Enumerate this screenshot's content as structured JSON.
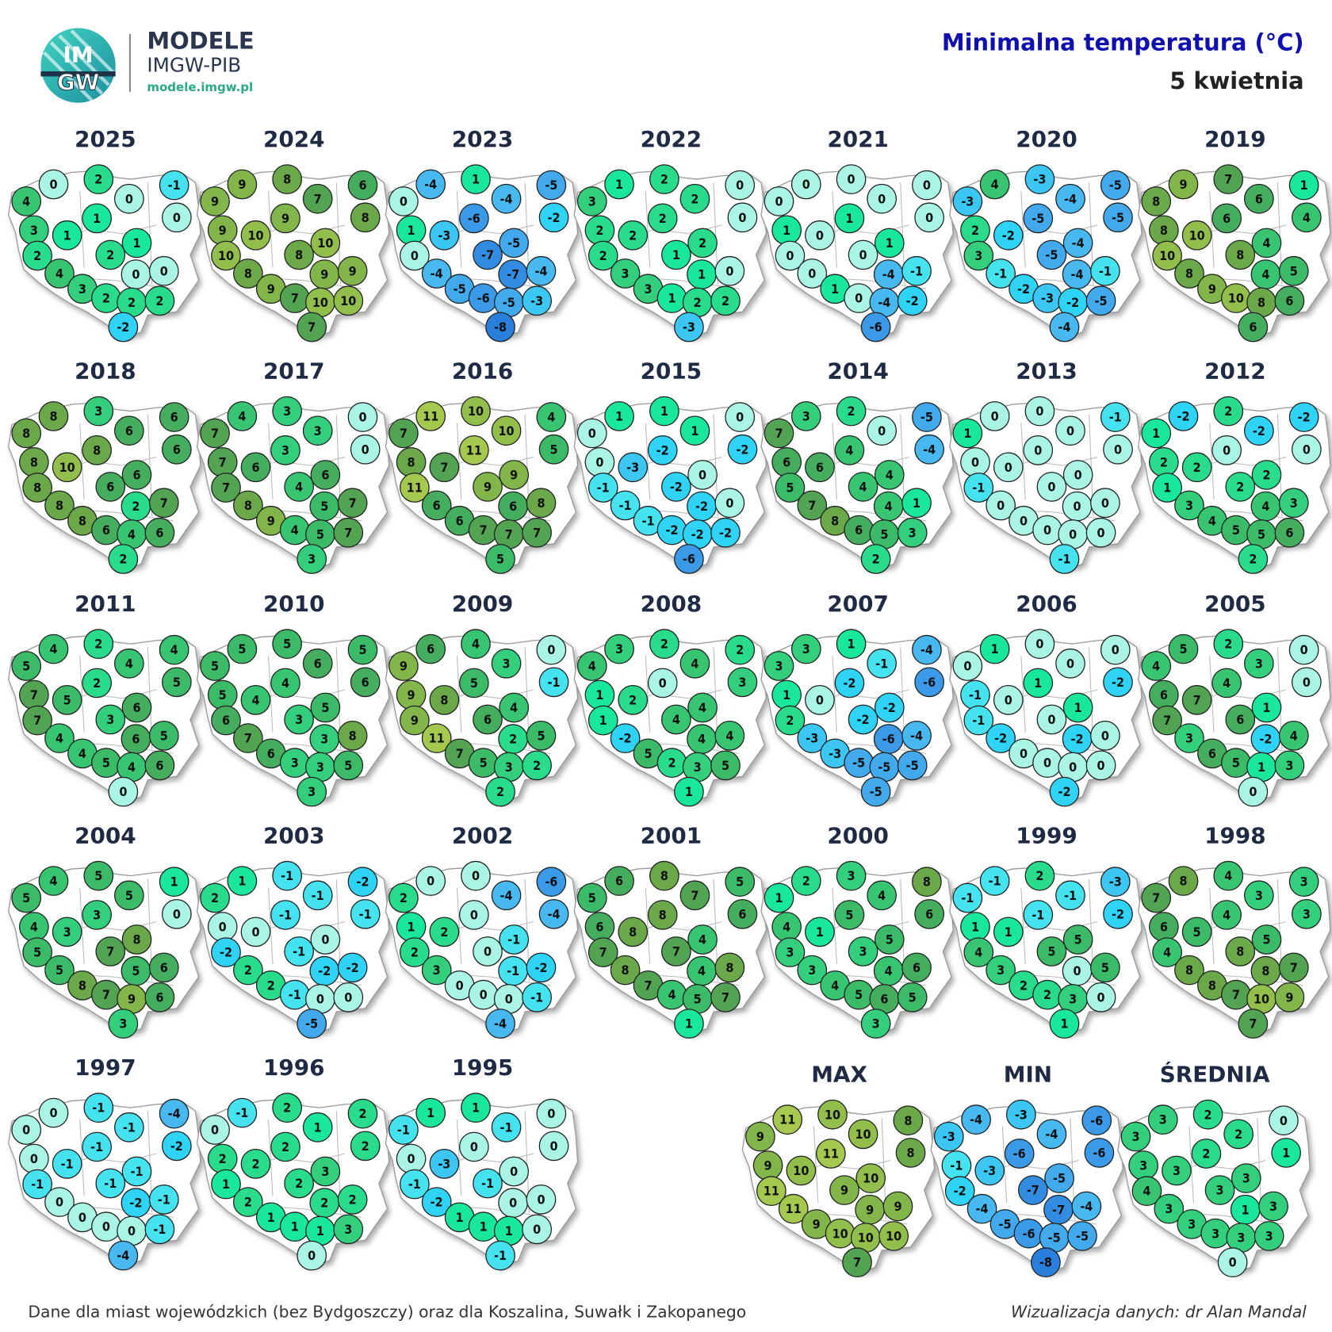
{
  "header": {
    "logo_text": [
      "IM",
      "GW"
    ],
    "brand": "MODELE",
    "org": "IMGW-PIB",
    "url": "modele.imgw.pl",
    "title": "Minimalna temperatura (°C)",
    "subtitle": "5 kwietnia"
  },
  "panels": [
    {
      "title": "2025",
      "values": [
        4,
        0,
        2,
        0,
        -1,
        0,
        3,
        1,
        1,
        1,
        2,
        2,
        0,
        0,
        4,
        3,
        2,
        2,
        2,
        -2
      ]
    },
    {
      "title": "2024",
      "values": [
        9,
        9,
        8,
        7,
        6,
        8,
        9,
        10,
        9,
        10,
        10,
        8,
        9,
        9,
        8,
        9,
        7,
        10,
        10,
        7
      ]
    },
    {
      "title": "2023",
      "values": [
        0,
        -4,
        1,
        -4,
        -5,
        -2,
        1,
        -3,
        -6,
        -5,
        0,
        -7,
        -7,
        -4,
        -4,
        -5,
        -6,
        -5,
        -3,
        -8
      ]
    },
    {
      "title": "2022",
      "values": [
        3,
        1,
        2,
        2,
        0,
        0,
        2,
        2,
        2,
        2,
        2,
        1,
        1,
        0,
        3,
        3,
        1,
        2,
        2,
        -3
      ]
    },
    {
      "title": "2021",
      "values": [
        0,
        0,
        0,
        0,
        0,
        0,
        1,
        0,
        1,
        1,
        0,
        0,
        -4,
        -1,
        0,
        1,
        0,
        -4,
        -2,
        -6
      ]
    },
    {
      "title": "2020",
      "values": [
        -3,
        4,
        -3,
        -4,
        -5,
        -5,
        2,
        -2,
        -5,
        -4,
        3,
        -5,
        -4,
        -1,
        -1,
        -2,
        -3,
        -2,
        -5,
        -4
      ]
    },
    {
      "title": "2019",
      "values": [
        8,
        9,
        7,
        6,
        1,
        4,
        8,
        10,
        6,
        4,
        10,
        8,
        4,
        5,
        8,
        9,
        10,
        8,
        6,
        6
      ]
    },
    {
      "title": "2018",
      "values": [
        8,
        8,
        3,
        6,
        6,
        6,
        8,
        10,
        8,
        6,
        8,
        6,
        2,
        7,
        8,
        8,
        6,
        4,
        6,
        2
      ]
    },
    {
      "title": "2017",
      "values": [
        7,
        4,
        3,
        3,
        0,
        0,
        7,
        6,
        3,
        6,
        7,
        4,
        5,
        7,
        8,
        9,
        4,
        5,
        7,
        3
      ]
    },
    {
      "title": "2016",
      "values": [
        7,
        11,
        10,
        10,
        4,
        5,
        8,
        7,
        11,
        9,
        11,
        9,
        6,
        8,
        6,
        6,
        7,
        7,
        7,
        5
      ]
    },
    {
      "title": "2015",
      "values": [
        0,
        1,
        1,
        1,
        0,
        -2,
        0,
        -3,
        -2,
        0,
        -1,
        -2,
        -2,
        0,
        -1,
        -1,
        -2,
        -2,
        -2,
        -6
      ]
    },
    {
      "title": "2014",
      "values": [
        7,
        3,
        2,
        0,
        -5,
        -4,
        6,
        6,
        4,
        4,
        5,
        4,
        4,
        1,
        7,
        8,
        6,
        5,
        3,
        2
      ]
    },
    {
      "title": "2013",
      "values": [
        1,
        0,
        0,
        0,
        -1,
        0,
        0,
        0,
        0,
        0,
        -1,
        0,
        0,
        0,
        0,
        0,
        0,
        0,
        0,
        -1
      ]
    },
    {
      "title": "2012",
      "values": [
        1,
        -2,
        2,
        -2,
        -2,
        0,
        2,
        2,
        0,
        2,
        1,
        2,
        4,
        3,
        3,
        4,
        5,
        5,
        6,
        2
      ]
    },
    {
      "title": "2011",
      "values": [
        5,
        4,
        2,
        4,
        4,
        5,
        7,
        5,
        2,
        6,
        7,
        3,
        6,
        5,
        4,
        4,
        5,
        4,
        6,
        0
      ]
    },
    {
      "title": "2010",
      "values": [
        5,
        5,
        5,
        6,
        5,
        6,
        5,
        4,
        4,
        5,
        6,
        3,
        3,
        8,
        7,
        6,
        3,
        3,
        5,
        3
      ]
    },
    {
      "title": "2009",
      "values": [
        9,
        6,
        4,
        3,
        0,
        -1,
        9,
        8,
        5,
        4,
        9,
        6,
        2,
        5,
        11,
        7,
        5,
        3,
        2,
        2
      ]
    },
    {
      "title": "2008",
      "values": [
        4,
        3,
        2,
        4,
        2,
        3,
        1,
        2,
        0,
        4,
        1,
        4,
        4,
        4,
        -2,
        5,
        2,
        3,
        5,
        1
      ]
    },
    {
      "title": "2007",
      "values": [
        3,
        3,
        1,
        -1,
        -4,
        -6,
        1,
        0,
        -2,
        -2,
        2,
        -2,
        -6,
        -4,
        -3,
        -3,
        -5,
        -5,
        -5,
        -5
      ]
    },
    {
      "title": "2006",
      "values": [
        0,
        1,
        0,
        0,
        0,
        -2,
        -1,
        0,
        1,
        1,
        -1,
        0,
        -2,
        0,
        -2,
        0,
        0,
        0,
        0,
        -2
      ]
    },
    {
      "title": "2005",
      "values": [
        4,
        5,
        2,
        3,
        0,
        0,
        6,
        7,
        4,
        1,
        7,
        6,
        -2,
        4,
        3,
        6,
        5,
        1,
        3,
        0
      ]
    },
    {
      "title": "2004",
      "values": [
        5,
        4,
        5,
        5,
        1,
        0,
        4,
        3,
        3,
        8,
        5,
        7,
        5,
        6,
        5,
        8,
        7,
        9,
        6,
        3
      ]
    },
    {
      "title": "2003",
      "values": [
        2,
        1,
        -1,
        -1,
        -2,
        -1,
        0,
        0,
        -1,
        0,
        -2,
        -1,
        -2,
        -2,
        2,
        2,
        -1,
        0,
        0,
        -5
      ]
    },
    {
      "title": "2002",
      "values": [
        2,
        0,
        0,
        -4,
        -6,
        -4,
        1,
        2,
        0,
        -1,
        2,
        0,
        -1,
        -2,
        3,
        0,
        0,
        0,
        -1,
        -4
      ]
    },
    {
      "title": "2001",
      "values": [
        5,
        6,
        8,
        7,
        5,
        6,
        6,
        8,
        8,
        4,
        7,
        7,
        4,
        8,
        8,
        7,
        4,
        5,
        7,
        1
      ]
    },
    {
      "title": "2000",
      "values": [
        1,
        2,
        3,
        4,
        8,
        6,
        4,
        1,
        5,
        5,
        3,
        3,
        4,
        6,
        3,
        4,
        5,
        6,
        5,
        3
      ]
    },
    {
      "title": "1999",
      "values": [
        -1,
        -1,
        2,
        -1,
        -3,
        -2,
        1,
        1,
        -1,
        5,
        4,
        5,
        0,
        5,
        3,
        2,
        2,
        3,
        0,
        1
      ]
    },
    {
      "title": "1998",
      "values": [
        7,
        8,
        4,
        3,
        3,
        3,
        6,
        5,
        4,
        5,
        4,
        8,
        8,
        7,
        8,
        8,
        7,
        10,
        9,
        7
      ]
    },
    {
      "title": "1997",
      "values": [
        0,
        0,
        -1,
        -1,
        -4,
        -2,
        0,
        -1,
        -1,
        -1,
        -1,
        -1,
        -2,
        -1,
        0,
        0,
        0,
        0,
        -1,
        -4
      ]
    },
    {
      "title": "1996",
      "values": [
        0,
        -1,
        2,
        1,
        2,
        2,
        2,
        2,
        2,
        3,
        1,
        2,
        2,
        2,
        2,
        1,
        1,
        1,
        3,
        0
      ]
    },
    {
      "title": "1995",
      "values": [
        -1,
        1,
        1,
        -1,
        0,
        0,
        0,
        -3,
        0,
        0,
        -1,
        -1,
        0,
        0,
        -2,
        1,
        1,
        1,
        0,
        -1
      ]
    },
    {
      "title": "MAX",
      "values": [
        9,
        11,
        10,
        10,
        8,
        8,
        9,
        10,
        11,
        10,
        11,
        9,
        9,
        9,
        11,
        9,
        10,
        10,
        10,
        7
      ]
    },
    {
      "title": "MIN",
      "values": [
        -3,
        -4,
        -3,
        -4,
        -6,
        -6,
        -1,
        -3,
        -6,
        -5,
        -2,
        -7,
        -7,
        -4,
        -4,
        -5,
        -6,
        -5,
        -5,
        -8
      ]
    },
    {
      "title": "ŚREDNIA",
      "values": [
        3,
        3,
        2,
        2,
        0,
        1,
        3,
        3,
        2,
        3,
        4,
        3,
        1,
        3,
        3,
        3,
        3,
        3,
        3,
        0
      ]
    }
  ],
  "footer": {
    "left": "Dane dla miast wojewódzkich (bez Bydgoszczy) oraz dla Koszalina, Suwałk i Zakopanego",
    "right": "Wizualizacja danych: dr Alan Mandal"
  }
}
